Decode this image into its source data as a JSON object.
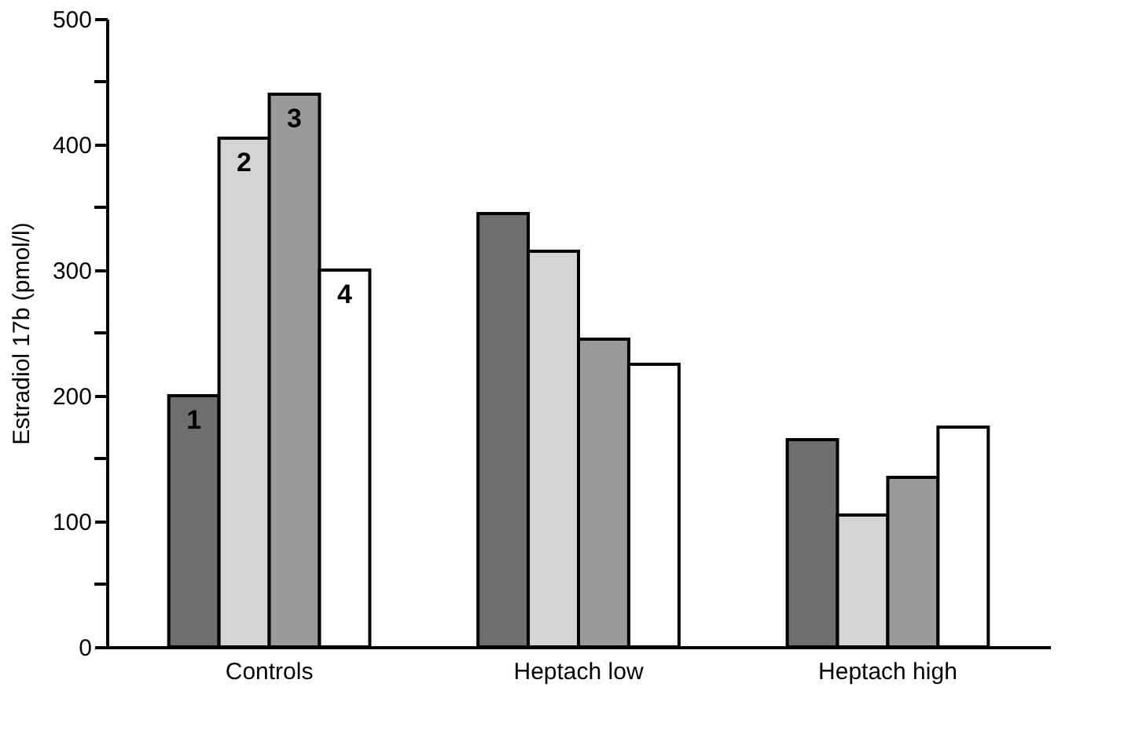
{
  "chart_data": {
    "type": "bar",
    "ylabel": "Estradiol 17b (pmol/l)",
    "categories": [
      "Controls",
      "Heptach low",
      "Heptach high"
    ],
    "series": [
      {
        "name": "1",
        "color": "#6e6e6e",
        "values": [
          200,
          345,
          165
        ]
      },
      {
        "name": "2",
        "color": "#d4d4d4",
        "values": [
          405,
          315,
          105
        ]
      },
      {
        "name": "3",
        "color": "#9a9a9a",
        "values": [
          440,
          245,
          135
        ]
      },
      {
        "name": "4",
        "color": "#ffffff",
        "values": [
          300,
          225,
          175
        ]
      }
    ],
    "ylim": [
      0,
      500
    ],
    "yticks": [
      0,
      {
        "value": 50,
        "label": null
      },
      100,
      {
        "value": 150,
        "label": null
      },
      200,
      {
        "value": 250,
        "label": null
      },
      300,
      {
        "value": 350,
        "label": null
      },
      400,
      {
        "value": 450,
        "label": null
      },
      500
    ],
    "grid": false,
    "legend": false
  }
}
